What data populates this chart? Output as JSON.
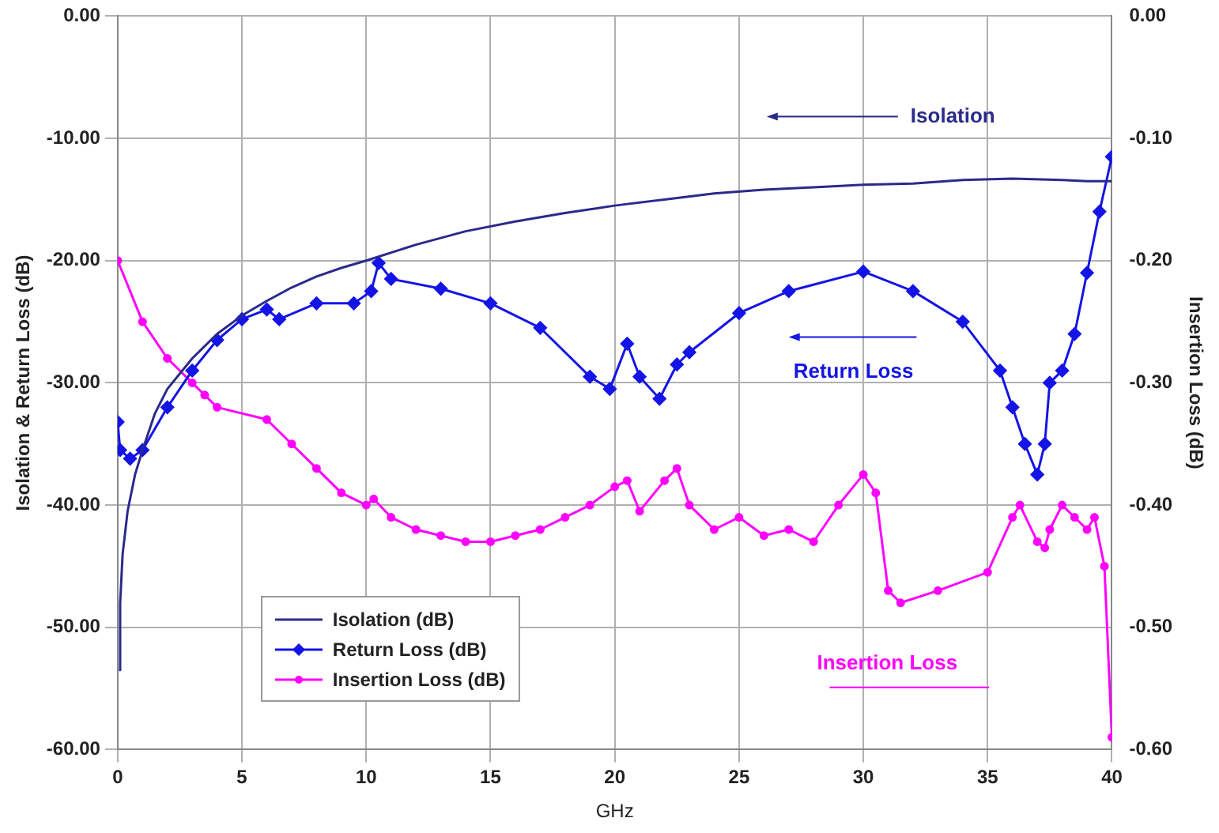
{
  "chart_data": {
    "type": "line",
    "xlabel": "GHz",
    "ylabel": "Isolation & Return Loss (dB)",
    "y2label": "Insertion Loss (dB)",
    "xlim": [
      0,
      40
    ],
    "xticks": [
      0,
      5,
      10,
      15,
      20,
      25,
      30,
      35,
      40
    ],
    "ylim": [
      -60,
      0
    ],
    "yticks": [
      {
        "value": -60,
        "label": "-60.00"
      },
      {
        "value": -50,
        "label": "-50.00"
      },
      {
        "value": -40,
        "label": "-40.00"
      },
      {
        "value": -30,
        "label": "-30.00"
      },
      {
        "value": -20,
        "label": "-20.00"
      },
      {
        "value": -10,
        "label": "-10.00"
      },
      {
        "value": 0,
        "label": "0.00"
      }
    ],
    "y2lim": [
      -0.6,
      0
    ],
    "y2ticks": [
      {
        "value": -0.6,
        "label": "-0.60"
      },
      {
        "value": -0.5,
        "label": "-0.50"
      },
      {
        "value": -0.4,
        "label": "-0.40"
      },
      {
        "value": -0.3,
        "label": "-0.30"
      },
      {
        "value": -0.2,
        "label": "-0.20"
      },
      {
        "value": -0.1,
        "label": "-0.10"
      },
      {
        "value": 0,
        "label": "0.00"
      }
    ],
    "grid": true,
    "legend": "bottom left",
    "line_style": "solid",
    "series": [
      {
        "name": "Isolation (dB)",
        "color": "#2a2a8c",
        "marker": "none",
        "x": [
          0.05,
          0.1,
          0.2,
          0.4,
          0.7,
          1,
          1.5,
          2,
          3,
          4,
          5,
          6,
          7,
          8,
          9,
          10,
          12,
          14,
          16,
          18,
          20,
          22,
          24,
          26,
          28,
          30,
          32,
          34,
          36,
          38,
          39,
          40
        ],
        "values": [
          -53.5,
          -48,
          -44,
          -40.5,
          -37.5,
          -35.5,
          -32.5,
          -30.5,
          -28,
          -26,
          -24.5,
          -23.3,
          -22.2,
          -21.3,
          -20.6,
          -20,
          -18.7,
          -17.6,
          -16.8,
          -16.1,
          -15.5,
          -15,
          -14.5,
          -14.2,
          -14,
          -13.8,
          -13.7,
          -13.4,
          -13.3,
          -13.4,
          -13.5,
          -13.5
        ]
      },
      {
        "name": "Return Loss (dB)",
        "color": "#1414e6",
        "marker": "diamond",
        "x": [
          0,
          0.1,
          0.5,
          1,
          2,
          3,
          4,
          5,
          6,
          6.5,
          8,
          9.5,
          10.2,
          10.5,
          11,
          13,
          15,
          17,
          19,
          19.8,
          20.5,
          21,
          21.8,
          22.5,
          23,
          25,
          27,
          30,
          32,
          34,
          35.5,
          36,
          36.5,
          37,
          37.3,
          37.5,
          38,
          38.5,
          39,
          39.5,
          40
        ],
        "values": [
          -33.2,
          -35.5,
          -36.2,
          -35.5,
          -32,
          -29,
          -26.5,
          -24.8,
          -24,
          -24.8,
          -23.5,
          -23.5,
          -22.5,
          -20.2,
          -21.5,
          -22.3,
          -23.5,
          -25.5,
          -29.5,
          -30.5,
          -26.8,
          -29.5,
          -31.3,
          -28.5,
          -27.5,
          -24.3,
          -22.5,
          -20.9,
          -22.5,
          -25,
          -29,
          -32,
          -35,
          -37.5,
          -35,
          -30,
          -29,
          -26,
          -21,
          -16,
          -11.5
        ]
      },
      {
        "name": "Insertion Loss (dB)",
        "color": "#ff00ff",
        "marker": "circle",
        "axis": "y2",
        "x": [
          0,
          1,
          2,
          3,
          3.5,
          4,
          6,
          7,
          8,
          9,
          10,
          10.3,
          11,
          12,
          13,
          14,
          15,
          16,
          17,
          18,
          19,
          20,
          20.5,
          21,
          22,
          22.5,
          23,
          24,
          25,
          26,
          27,
          28,
          29,
          30,
          30.5,
          31,
          31.5,
          33,
          35,
          36,
          36.3,
          37,
          37.3,
          37.5,
          38,
          38.5,
          39,
          39.3,
          39.7,
          40
        ],
        "values": [
          -0.2,
          -0.25,
          -0.28,
          -0.3,
          -0.31,
          -0.32,
          -0.33,
          -0.35,
          -0.37,
          -0.39,
          -0.4,
          -0.395,
          -0.41,
          -0.42,
          -0.425,
          -0.43,
          -0.43,
          -0.425,
          -0.42,
          -0.41,
          -0.4,
          -0.385,
          -0.38,
          -0.405,
          -0.38,
          -0.37,
          -0.4,
          -0.42,
          -0.41,
          -0.425,
          -0.42,
          -0.43,
          -0.4,
          -0.375,
          -0.39,
          -0.47,
          -0.48,
          -0.47,
          -0.455,
          -0.41,
          -0.4,
          -0.43,
          -0.435,
          -0.42,
          -0.4,
          -0.41,
          -0.42,
          -0.41,
          -0.45,
          -0.59
        ]
      }
    ],
    "annotations": [
      "Isolation",
      "Return Loss",
      "Insertion Loss"
    ]
  }
}
